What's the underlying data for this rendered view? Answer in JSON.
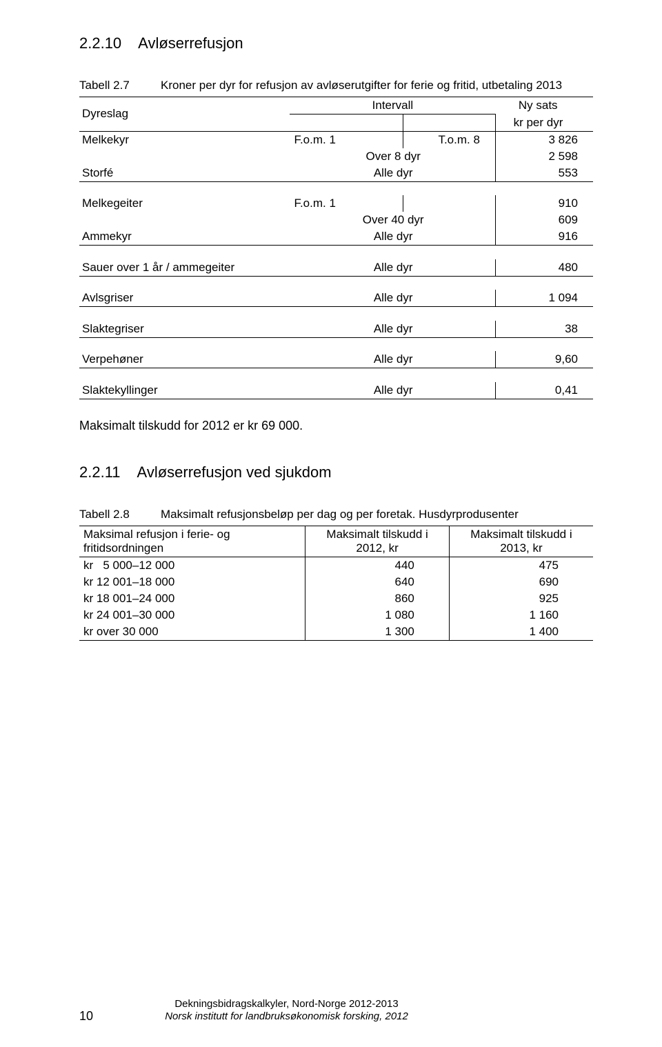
{
  "section1": {
    "num": "2.2.10",
    "title": "Avløserrefusjon"
  },
  "table27": {
    "label": "Tabell 2.7",
    "caption": "Kroner per dyr for refusjon av avløserutgifter for ferie og fritid, utbetaling 2013",
    "head": {
      "c1": "Dyreslag",
      "c2": "Intervall",
      "c3": "Ny sats",
      "c3b": "kr per dyr"
    },
    "groups": [
      [
        {
          "c1": "Melkekyr",
          "c2a": "F.o.m. 1",
          "c2b": "T.o.m. 8",
          "c3": "3 826"
        },
        {
          "c1": "",
          "c2": "Over 8 dyr",
          "c3": "2 598"
        },
        {
          "c1": "Storfé",
          "c2": "Alle dyr",
          "c3": "553"
        }
      ],
      [
        {
          "c1": "Melkegeiter",
          "c2a": "F.o.m. 1",
          "c2b": "",
          "c3": "910"
        },
        {
          "c1": "",
          "c2": "Over 40 dyr",
          "c3": "609"
        },
        {
          "c1": "Ammekyr",
          "c2": "Alle dyr",
          "c3": "916"
        }
      ],
      [
        {
          "c1": "Sauer over 1 år / ammegeiter",
          "c2": "Alle dyr",
          "c3": "480"
        }
      ],
      [
        {
          "c1": "Avlsgriser",
          "c2": "Alle dyr",
          "c3": "1 094"
        }
      ],
      [
        {
          "c1": "Slaktegriser",
          "c2": "Alle dyr",
          "c3": "38"
        }
      ],
      [
        {
          "c1": "Verpehøner",
          "c2": "Alle dyr",
          "c3": "9,60"
        }
      ],
      [
        {
          "c1": "Slaktekyllinger",
          "c2": "Alle dyr",
          "c3": "0,41"
        }
      ]
    ]
  },
  "bodytext": "Maksimalt tilskudd for 2012 er kr 69 000.",
  "section2": {
    "num": "2.2.11",
    "title": "Avløserrefusjon ved sjukdom"
  },
  "table28": {
    "label": "Tabell 2.8",
    "caption": "Maksimalt refusjonsbeløp per dag og per foretak. Husdyrprodusenter",
    "head": {
      "a": "Maksimal refusjon i ferie- og fritidsordningen",
      "b1": "Maksimalt tilskudd i",
      "b2": "2012, kr",
      "c1": "Maksimalt tilskudd i",
      "c2": "2013, kr"
    },
    "rows": [
      {
        "a": "kr   5 000–12 000",
        "b": "440",
        "c": "475"
      },
      {
        "a": "kr 12 001–18 000",
        "b": "640",
        "c": "690"
      },
      {
        "a": "kr 18 001–24 000",
        "b": "860",
        "c": "925"
      },
      {
        "a": "kr 24 001–30 000",
        "b": "1 080",
        "c": "1 160"
      },
      {
        "a": "kr over 30 000",
        "b": "1 300",
        "c": "1 400"
      }
    ]
  },
  "footer": {
    "page": "10",
    "line1": "Dekningsbidragskalkyler, Nord-Norge 2012-2013",
    "line2": "Norsk institutt for landbruksøkonomisk forsking, 2012"
  }
}
